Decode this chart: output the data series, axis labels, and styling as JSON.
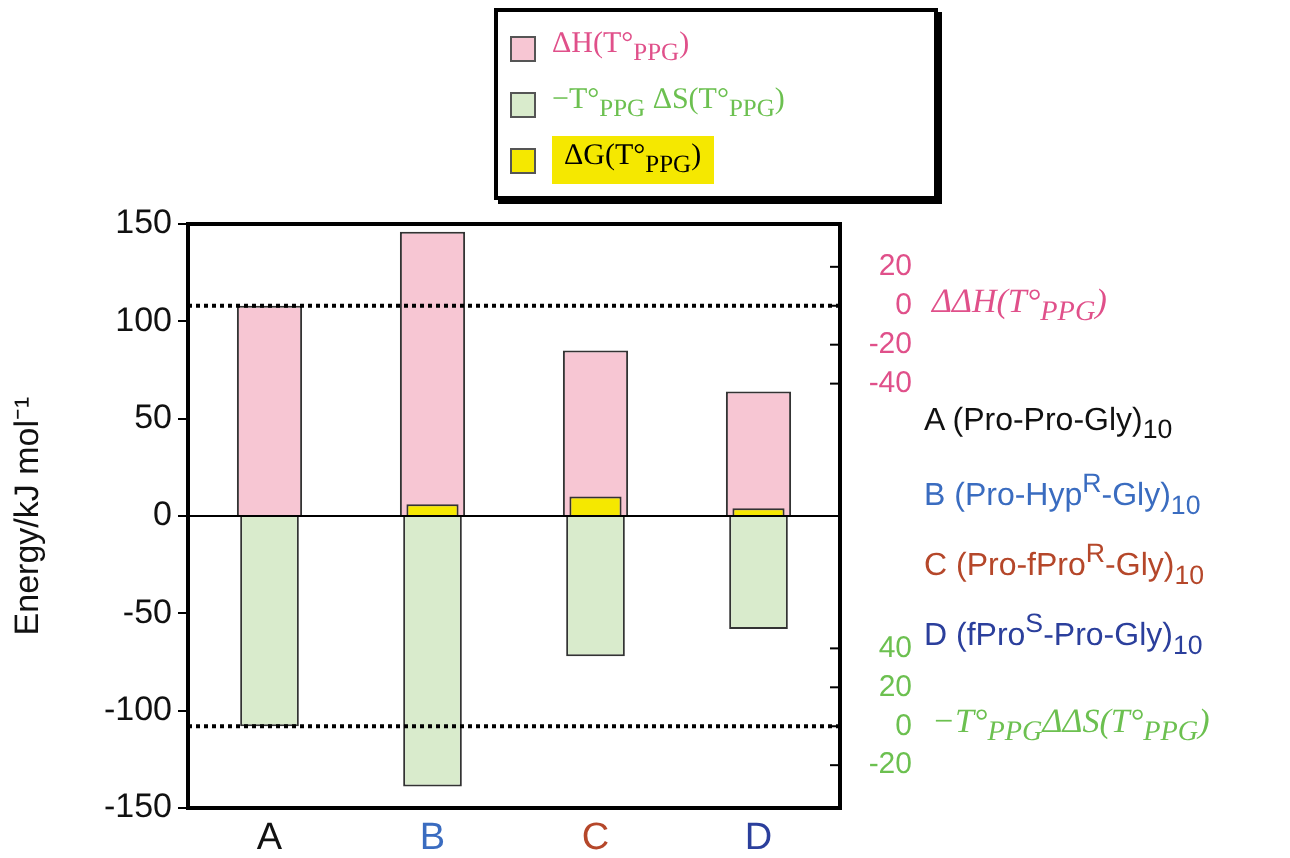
{
  "chart_data": {
    "type": "bar",
    "ylabel": "Energy/kJ mol⁻¹",
    "y2label": "ΔΔH(T°$_{PPG}$)",
    "y3label": "−T°$_{PPG}$ΔΔS(T°$_{PPG}$)",
    "categories": [
      "A",
      "B",
      "C",
      "D"
    ],
    "series": [
      {
        "name": "ΔH(T°$_{PPG}$)",
        "color": "#f7c6d3",
        "values": [
          108,
          146,
          85,
          64
        ]
      },
      {
        "name": "−T°$_{PPG}$ ΔS(T°$_{PPG}$)",
        "color": "#d9ebcc",
        "values": [
          -108,
          -139,
          -72,
          -58
        ]
      },
      {
        "name": "ΔG(T°$_{PPG}$)",
        "color": "#f5e800",
        "values": [
          0,
          6,
          10,
          4
        ]
      }
    ],
    "ylim": [
      -150,
      150
    ],
    "yticks": [
      -150,
      -100,
      -50,
      0,
      50,
      100,
      150
    ],
    "y2lim": [
      -258,
      42
    ],
    "y2ticks": [
      -40,
      -20,
      0,
      20
    ],
    "y3lim": [
      -42,
      258
    ],
    "y3ticks": [
      -20,
      0,
      20,
      40
    ],
    "ref_lines": [
      {
        "axis": "y",
        "value": 108,
        "color": "#000000",
        "line_style": "dotted"
      },
      {
        "axis": "y",
        "value": -108,
        "color": "#000000",
        "line_style": "dotted"
      },
      {
        "axis": "y",
        "value": 0,
        "color": "#000000",
        "line_style": "solid"
      }
    ],
    "annotations": [
      "A (Pro-Pro-Gly)$_{10}$",
      "B (Pro-Hyp$^{R}$-Gly)$_{10}$",
      "C (Pro-fPro$^{R}$-Gly)$_{10}$",
      "D (fPro$^{S}$-Pro-Gly)$_{10}$"
    ],
    "legend": "top",
    "grid": false
  }
}
